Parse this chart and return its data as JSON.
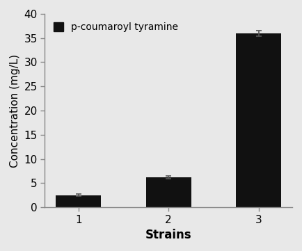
{
  "categories": [
    "1",
    "2",
    "3"
  ],
  "values": [
    2.5,
    6.2,
    36.0
  ],
  "errors": [
    0.2,
    0.25,
    0.6
  ],
  "bar_color": "#111111",
  "bar_width": 0.5,
  "title": "",
  "xlabel": "Strains",
  "ylabel": "Concentration (mg/L)",
  "ylim": [
    0,
    40
  ],
  "yticks": [
    0,
    5,
    10,
    15,
    20,
    25,
    30,
    35,
    40
  ],
  "legend_label": "p-coumaroyl tyramine",
  "legend_color": "#111111",
  "background_color": "#e8e8e8",
  "axes_background": "#e8e8e8",
  "xlabel_fontsize": 12,
  "ylabel_fontsize": 11,
  "tick_fontsize": 11,
  "legend_fontsize": 10
}
